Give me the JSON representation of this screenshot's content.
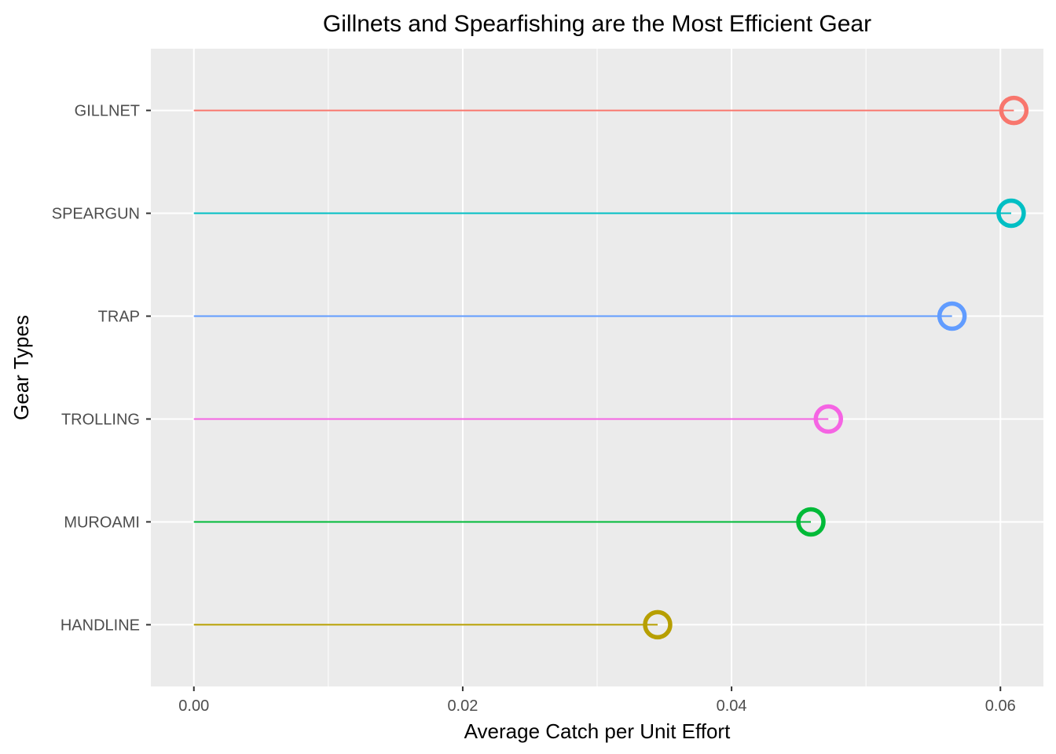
{
  "chart_data": {
    "type": "lollipop",
    "orientation": "horizontal",
    "title": "Gillnets and Spearfishing are the Most Efficient Gear",
    "xlabel": "Average Catch per Unit Effort",
    "ylabel": "Gear Types",
    "xlim": [
      -0.0032,
      0.0632
    ],
    "xticks": [
      "0.00",
      "0.02",
      "0.04",
      "0.06"
    ],
    "xtick_values": [
      0.0,
      0.02,
      0.04,
      0.06
    ],
    "grid": true,
    "legend": "none",
    "categories": [
      "GILLNET",
      "SPEARGUN",
      "TRAP",
      "TROLLING",
      "MUROAMI",
      "HANDLINE"
    ],
    "values": [
      0.061,
      0.0608,
      0.0564,
      0.0472,
      0.0459,
      0.0345
    ],
    "colors": [
      "#F8766D",
      "#00BFC4",
      "#619CFF",
      "#F564E3",
      "#00BA38",
      "#B79F00"
    ],
    "panel_background": "#EBEBEB",
    "grid_color": "#FFFFFF"
  }
}
